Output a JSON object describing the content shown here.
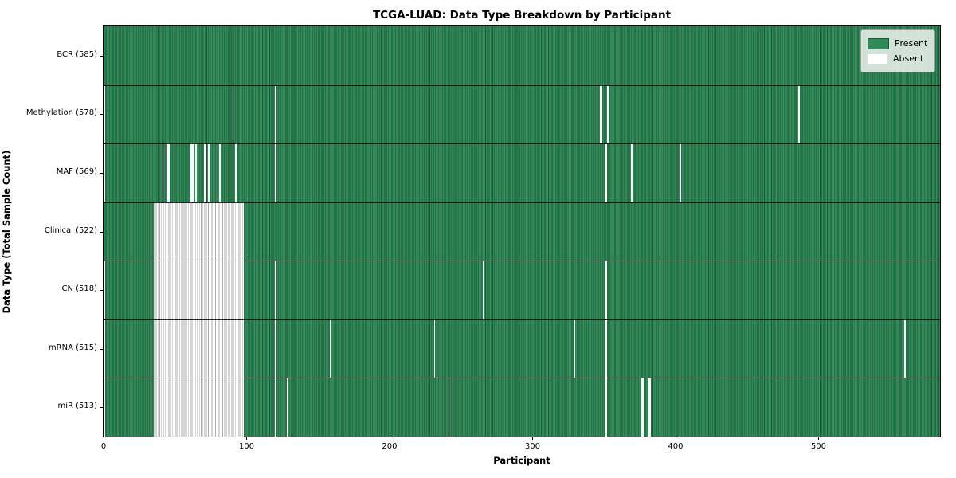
{
  "title": "TCGA-LUAD: Data Type Breakdown by Participant",
  "legend": {
    "entries": [
      "Present",
      "Absent"
    ]
  },
  "colors": {
    "present": "#2e8b57",
    "present_dark_edge": "#1d5737",
    "present_light_band": "#4aa06c",
    "absent": "#ffffff",
    "absent_stripe": "#ababab",
    "axis": "#000000",
    "legend_border": "#9a9a9a"
  },
  "chart_data": {
    "type": "heatmap",
    "title": "TCGA-LUAD: Data Type Breakdown by Participant",
    "xlabel": "Participant",
    "ylabel": "Data Type (Total Sample Count)",
    "xlim": [
      0,
      585
    ],
    "x_ticks": [
      0,
      100,
      200,
      300,
      400,
      500
    ],
    "grid": false,
    "legend_entries": [
      "Present",
      "Absent"
    ],
    "legend_position": "upper right",
    "value_encoding": "green = data present for participant, white = absent",
    "rows": [
      {
        "label": "BCR (585)",
        "data_type": "BCR",
        "present_count": 585,
        "absent_ranges": []
      },
      {
        "label": "Methylation (578)",
        "data_type": "Methylation",
        "present_count": 578,
        "absent_ranges": [
          [
            0,
            0
          ],
          [
            90,
            90
          ],
          [
            120,
            120
          ],
          [
            347,
            348
          ],
          [
            352,
            352
          ],
          [
            486,
            486
          ]
        ]
      },
      {
        "label": "MAF (569)",
        "data_type": "MAF",
        "present_count": 569,
        "absent_ranges": [
          [
            0,
            0
          ],
          [
            41,
            41
          ],
          [
            44,
            45
          ],
          [
            61,
            62
          ],
          [
            64,
            64
          ],
          [
            70,
            71
          ],
          [
            73,
            73
          ],
          [
            81,
            81
          ],
          [
            92,
            92
          ],
          [
            120,
            120
          ],
          [
            351,
            351
          ],
          [
            369,
            369
          ],
          [
            403,
            403
          ]
        ]
      },
      {
        "label": "Clinical (522)",
        "data_type": "Clinical",
        "present_count": 522,
        "absent_ranges": [
          [
            35,
            97
          ]
        ]
      },
      {
        "label": "CN (518)",
        "data_type": "CN",
        "present_count": 518,
        "absent_ranges": [
          [
            0,
            0
          ],
          [
            35,
            97
          ],
          [
            120,
            120
          ],
          [
            265,
            265
          ],
          [
            351,
            351
          ]
        ]
      },
      {
        "label": "mRNA (515)",
        "data_type": "mRNA",
        "present_count": 515,
        "absent_ranges": [
          [
            0,
            0
          ],
          [
            35,
            97
          ],
          [
            120,
            120
          ],
          [
            158,
            158
          ],
          [
            231,
            231
          ],
          [
            329,
            329
          ],
          [
            351,
            351
          ],
          [
            560,
            560
          ]
        ]
      },
      {
        "label": "miR (513)",
        "data_type": "miR",
        "present_count": 513,
        "absent_ranges": [
          [
            0,
            0
          ],
          [
            35,
            97
          ],
          [
            120,
            120
          ],
          [
            128,
            128
          ],
          [
            241,
            241
          ],
          [
            351,
            351
          ],
          [
            376,
            377
          ],
          [
            381,
            382
          ]
        ]
      }
    ]
  }
}
